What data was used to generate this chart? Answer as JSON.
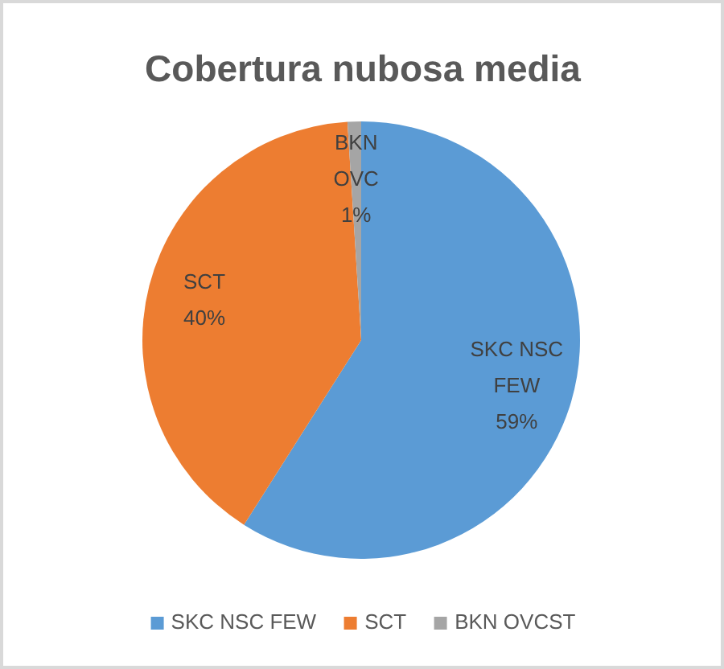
{
  "chart_data": {
    "type": "pie",
    "title": "Cobertura nubosa media",
    "categories": [
      "SKC NSC FEW",
      "SCT",
      "BKN OVCST"
    ],
    "values": [
      59,
      40,
      1
    ],
    "colors": [
      "#5b9bd5",
      "#ed7d31",
      "#a5a5a5"
    ],
    "value_labels": [
      "SKC NSC\nFEW\n59%",
      "SCT\n40%",
      "BKN\nOVC\n1%"
    ],
    "legend": "bottom"
  }
}
